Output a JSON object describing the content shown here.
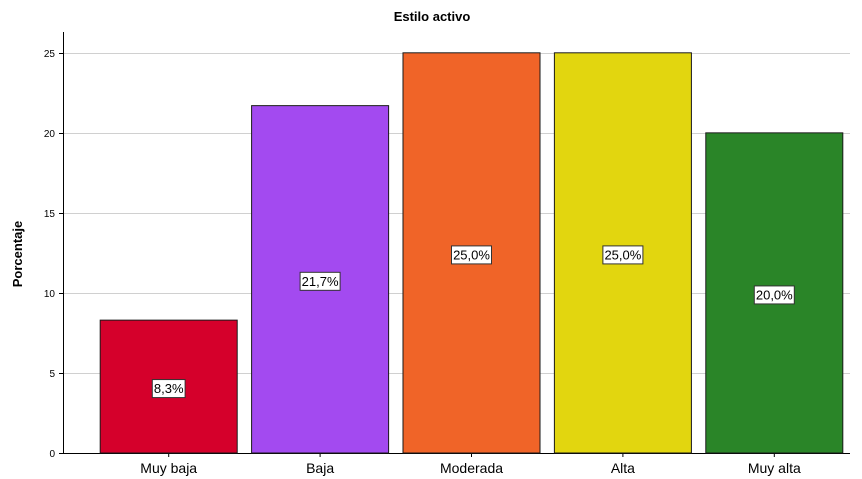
{
  "chart_data": {
    "type": "bar",
    "title": "Estilo activo",
    "xlabel": "",
    "ylabel": "Porcentaje",
    "ylim": [
      0,
      26.3
    ],
    "yticks": [
      "0",
      "5",
      "10",
      "15",
      "20",
      "25"
    ],
    "grid": true,
    "categories": [
      "Muy baja",
      "Baja",
      "Moderada",
      "Alta",
      "Muy alta"
    ],
    "values": [
      8.3,
      21.7,
      25.0,
      25.0,
      20.0
    ],
    "data_labels": [
      "8,3%",
      "21,7%",
      "25,0%",
      "25,0%",
      "20,0%"
    ],
    "colors": [
      "#d5002b",
      "#a34af0",
      "#f06428",
      "#e2d60f",
      "#2a8528"
    ]
  }
}
